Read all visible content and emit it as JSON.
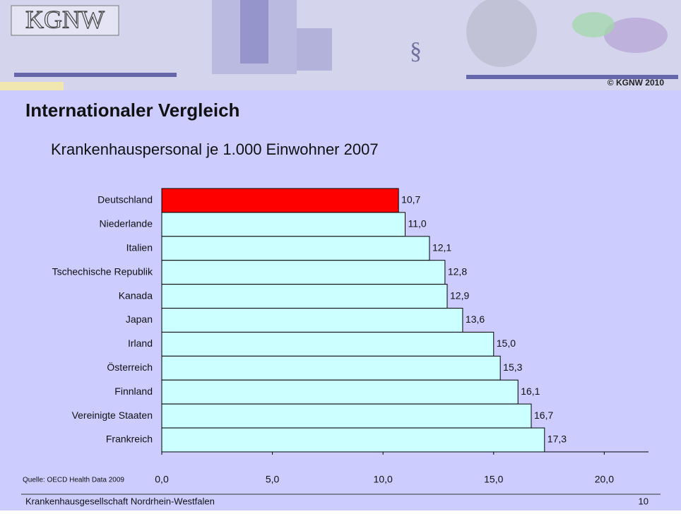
{
  "header": {
    "logo": "KGNW",
    "copyright": "© KGNW 2010"
  },
  "chart_data": {
    "type": "bar",
    "orientation": "horizontal",
    "title": "Internationaler Vergleich",
    "subtitle": "Krankenhauspersonal je 1.000 Einwohner 2007",
    "categories": [
      "Deutschland",
      "Niederlande",
      "Italien",
      "Tschechische Republik",
      "Kanada",
      "Japan",
      "Irland",
      "Österreich",
      "Finnland",
      "Vereinigte Staaten",
      "Frankreich"
    ],
    "values": [
      10.7,
      11.0,
      12.1,
      12.8,
      12.9,
      13.6,
      15.0,
      15.3,
      16.1,
      16.7,
      17.3
    ],
    "value_labels": [
      "10,7",
      "11,0",
      "12,1",
      "12,8",
      "12,9",
      "13,6",
      "15,0",
      "15,3",
      "16,1",
      "16,7",
      "17,3"
    ],
    "colors": [
      "#ff0000",
      "#ccffff",
      "#ccffff",
      "#ccffff",
      "#ccffff",
      "#ccffff",
      "#ccffff",
      "#ccffff",
      "#ccffff",
      "#ccffff",
      "#ccffff"
    ],
    "xlim": [
      0,
      22
    ],
    "xticks": [
      {
        "value": 0,
        "label": "0,0"
      },
      {
        "value": 5,
        "label": "5,0"
      },
      {
        "value": 10,
        "label": "10,0"
      },
      {
        "value": 15,
        "label": "15,0"
      },
      {
        "value": 20,
        "label": "20,0"
      }
    ],
    "source": "Quelle: OECD Health Data 2009"
  },
  "footer": {
    "organization": "Krankenhausgesellschaft Nordrhein-Westfalen",
    "page": "10"
  }
}
